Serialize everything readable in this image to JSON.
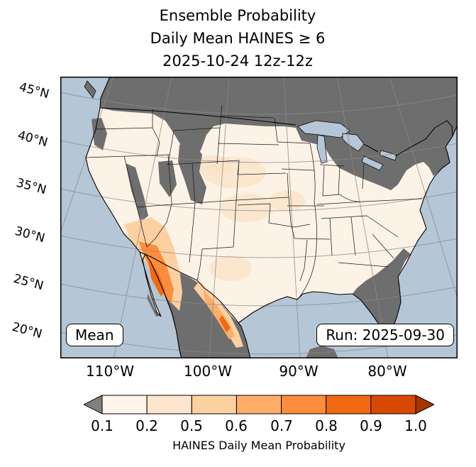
{
  "title": {
    "line1": "Ensemble Probability",
    "line2": "Daily Mean HAINES ≥ 6",
    "line3": "2025-10-24 12z-12z"
  },
  "map": {
    "lat_labels": [
      "45°N",
      "40°N",
      "35°N",
      "30°N",
      "25°N",
      "20°N"
    ],
    "lon_labels": [
      "110°W",
      "100°W",
      "90°W",
      "80°W"
    ],
    "mean_box": "Mean",
    "run_box": "Run: 2025-09-30",
    "ocean_color": "#b5c6d6",
    "masked_color": "#6e6e6e",
    "land_base_color": "#fdf2e6"
  },
  "colorbar": {
    "label": "HAINES Daily Mean Probability",
    "ticks": [
      "0.1",
      "0.2",
      "0.5",
      "0.6",
      "0.7",
      "0.8",
      "0.9",
      "1.0"
    ],
    "segment_colors": [
      "#fff5eb",
      "#fee6ce",
      "#fdd0a2",
      "#fdae6b",
      "#fd8d3c",
      "#f16913",
      "#d94801"
    ],
    "under_color": "#808080",
    "over_color": "#a63603"
  }
}
